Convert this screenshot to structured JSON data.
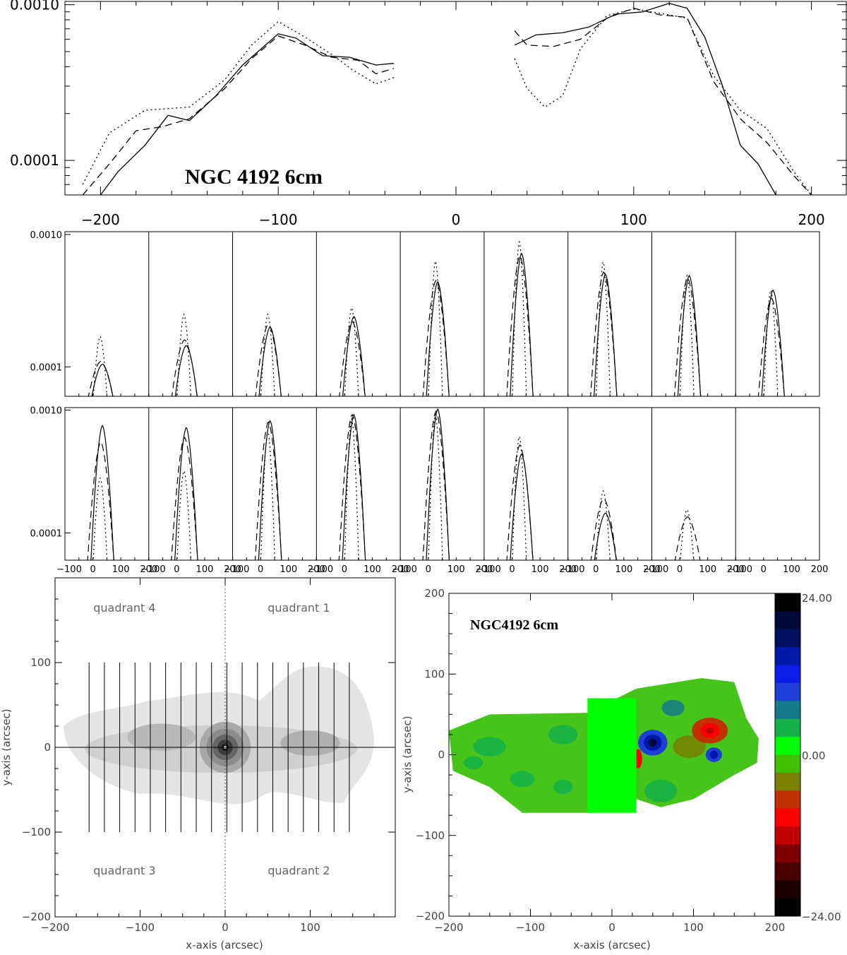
{
  "chart_data": [
    {
      "type": "line",
      "title": "NGC 4192 6cm",
      "xlim": [
        -220,
        220
      ],
      "ylim": [
        6e-05,
        0.00105
      ],
      "yscale": "log",
      "xticks": [
        "-200",
        "-100",
        "0",
        "100",
        "200"
      ],
      "yticks": [
        "0.0001",
        "0.0010"
      ],
      "series": [
        {
          "style": "solid",
          "segments": [
            [
              [
                -200,
                6e-05
              ],
              [
                -190,
                8.5e-05
              ],
              [
                -175,
                0.000125
              ],
              [
                -162,
                0.000195
              ],
              [
                -150,
                0.00018
              ],
              [
                -135,
                0.00026
              ],
              [
                -120,
                0.00041
              ],
              [
                -100,
                0.00065
              ],
              [
                -90,
                0.00061
              ],
              [
                -75,
                0.00047
              ],
              [
                -60,
                0.00046
              ],
              [
                -45,
                0.00041
              ],
              [
                -35,
                0.00042
              ]
            ],
            [
              [
                33,
                0.00055
              ],
              [
                45,
                0.00064
              ],
              [
                60,
                0.00066
              ],
              [
                75,
                0.00072
              ],
              [
                90,
                0.00087
              ],
              [
                105,
                0.0009
              ],
              [
                120,
                0.00102
              ],
              [
                130,
                0.00095
              ],
              [
                140,
                0.00062
              ],
              [
                150,
                0.0003
              ],
              [
                160,
                0.000125
              ],
              [
                170,
                9.5e-05
              ],
              [
                180,
                6e-05
              ]
            ]
          ]
        },
        {
          "style": "dashed",
          "segments": [
            [
              [
                -210,
                6e-05
              ],
              [
                -195,
                9.5e-05
              ],
              [
                -180,
                0.000155
              ],
              [
                -165,
                0.000165
              ],
              [
                -150,
                0.000185
              ],
              [
                -130,
                0.00029
              ],
              [
                -115,
                0.00045
              ],
              [
                -100,
                0.00063
              ],
              [
                -85,
                0.00055
              ],
              [
                -70,
                0.00046
              ],
              [
                -55,
                0.00044
              ],
              [
                -45,
                0.00036
              ],
              [
                -35,
                0.00039
              ]
            ],
            [
              [
                33,
                0.00068
              ],
              [
                40,
                0.00055
              ],
              [
                55,
                0.00054
              ],
              [
                70,
                0.0006
              ],
              [
                85,
                0.00082
              ],
              [
                100,
                0.00095
              ],
              [
                115,
                0.00086
              ],
              [
                130,
                0.00083
              ],
              [
                145,
                0.00032
              ],
              [
                160,
                0.000185
              ],
              [
                175,
                0.00013
              ],
              [
                190,
                8e-05
              ],
              [
                200,
                6e-05
              ]
            ]
          ]
        },
        {
          "style": "dotted",
          "segments": [
            [
              [
                -210,
                7e-05
              ],
              [
                -195,
                0.00015
              ],
              [
                -175,
                0.00021
              ],
              [
                -150,
                0.00022
              ],
              [
                -130,
                0.00033
              ],
              [
                -115,
                0.00055
              ],
              [
                -100,
                0.00078
              ],
              [
                -85,
                0.00062
              ],
              [
                -70,
                0.00048
              ],
              [
                -58,
                0.00038
              ],
              [
                -45,
                0.00031
              ],
              [
                -35,
                0.00034
              ]
            ],
            [
              [
                33,
                0.00045
              ],
              [
                40,
                0.00029
              ],
              [
                50,
                0.00022
              ],
              [
                60,
                0.00026
              ],
              [
                70,
                0.00052
              ],
              [
                85,
                0.00085
              ],
              [
                100,
                0.00094
              ],
              [
                115,
                0.00088
              ],
              [
                130,
                0.00082
              ],
              [
                145,
                0.00035
              ],
              [
                160,
                0.00021
              ],
              [
                175,
                0.00016
              ],
              [
                190,
                8.5e-05
              ],
              [
                200,
                6e-05
              ]
            ]
          ]
        }
      ]
    },
    {
      "type": "line",
      "panel_grid": "2x9 small multiples",
      "xlim": [
        -100,
        200
      ],
      "ylim": [
        6e-05,
        0.00105
      ],
      "yscale": "log",
      "yticks": [
        "0.0001",
        "0.0010"
      ],
      "xtick_labels": [
        "-100",
        "0",
        "100",
        "200"
      ],
      "row1_peaks": {
        "solid": [
          0.000105,
          0.000145,
          0.0002,
          0.00024,
          0.00044,
          0.00072,
          0.0005,
          0.00049,
          0.00038
        ],
        "dashed": [
          0.00011,
          0.00016,
          0.00021,
          0.00022,
          0.00045,
          0.00069,
          0.00052,
          0.00047,
          0.00033
        ],
        "dotted": [
          0.00017,
          0.00025,
          0.00025,
          0.00028,
          0.00063,
          0.00088,
          0.00062,
          0.00049,
          0.00038
        ]
      },
      "row2_peaks": {
        "solid": [
          0.00075,
          0.00072,
          0.00082,
          0.00092,
          0.00102,
          0.00044,
          0.000145,
          0.0,
          0.0
        ],
        "dashed": [
          0.00055,
          0.0006,
          0.0008,
          0.00092,
          0.00098,
          0.00052,
          0.00019,
          0.000135,
          0.0
        ],
        "dotted": [
          0.00028,
          0.00032,
          0.00068,
          0.00085,
          0.00092,
          0.00061,
          0.00022,
          0.000155,
          0.0
        ]
      }
    },
    {
      "type": "heatmap",
      "xlabel": "x-axis (arcsec)",
      "ylabel": "y-axis (arcsec)",
      "xlim": [
        -200,
        200
      ],
      "ylim": [
        -200,
        200
      ],
      "xticks": [
        "-200",
        "-100",
        "0",
        "100"
      ],
      "yticks": [
        "-200",
        "-100",
        "0",
        "100"
      ],
      "labels": [
        "quadrant 4",
        "quadrant 1",
        "quadrant 3",
        "quadrant 2"
      ],
      "strip_x": [
        -160,
        -142,
        -124,
        -106,
        -88,
        -70,
        -52,
        -34,
        -16,
        2,
        20,
        38,
        56,
        74,
        92,
        110,
        128,
        146
      ],
      "strip_y": [
        -100,
        100
      ]
    },
    {
      "type": "heatmap",
      "title": "NGC4192 6cm",
      "xlabel": "x-axis (arcsec)",
      "ylabel": "y-axis (arcsec)",
      "xlim": [
        -200,
        200
      ],
      "ylim": [
        -200,
        200
      ],
      "xticks": [
        "-200",
        "-100",
        "0",
        "100",
        "200"
      ],
      "yticks": [
        "-200",
        "-100",
        "0",
        "100",
        "200"
      ],
      "colorbar": {
        "max_label": "24.00",
        "mid_label": "0.00",
        "min_label": "-24.00",
        "colors": [
          "#000000",
          "#000a3a",
          "#001060",
          "#0018a8",
          "#0a1ee8",
          "#1e3ed8",
          "#137a8a",
          "#14b04a",
          "#00ff00",
          "#42c000",
          "#7a8000",
          "#c03000",
          "#ff0000",
          "#c00000",
          "#7e0000",
          "#4a0000",
          "#1c0000",
          "#000000"
        ]
      }
    }
  ]
}
